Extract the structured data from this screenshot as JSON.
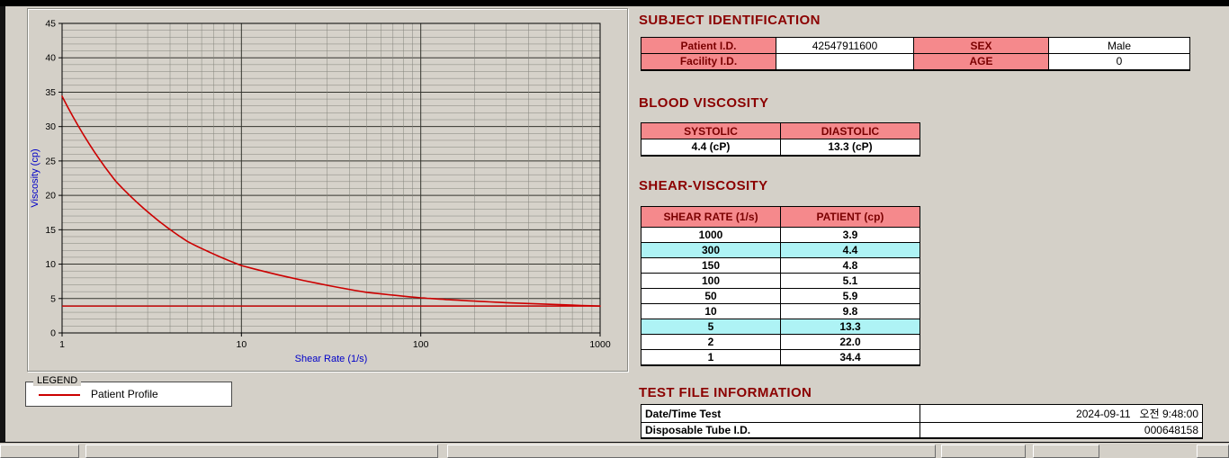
{
  "colors": {
    "header_bg": "#f5898c",
    "highlight_bg": "#aef3f5",
    "heading_text": "#8b0000",
    "accent_red": "#cc0000"
  },
  "chart_data": {
    "type": "line",
    "title": "",
    "xlabel": "Shear Rate (1/s)",
    "ylabel": "Viscosity (cp)",
    "x_scale": "log",
    "xlim": [
      1,
      1000
    ],
    "ylim": [
      0,
      45
    ],
    "y_ticks": [
      0,
      5,
      10,
      15,
      20,
      25,
      30,
      35,
      40,
      45
    ],
    "x_ticks": [
      1,
      10,
      100,
      1000
    ],
    "grid": true,
    "legend_position": "below-left",
    "series": [
      {
        "name": "Patient Profile",
        "color": "#cc0000",
        "x": [
          1,
          2,
          5,
          10,
          50,
          100,
          150,
          300,
          1000
        ],
        "y": [
          34.4,
          22.0,
          13.3,
          9.8,
          5.9,
          5.1,
          4.8,
          4.4,
          3.9
        ]
      }
    ],
    "reference_line": {
      "y": 3.9,
      "color": "#cc0000"
    }
  },
  "legend": {
    "title": "LEGEND",
    "series_label": "Patient Profile",
    "line_color": "#cc0000"
  },
  "subject": {
    "title": "SUBJECT IDENTIFICATION",
    "patient_id_label": "Patient I.D.",
    "patient_id_value": "42547911600",
    "sex_label": "SEX",
    "sex_value": "Male",
    "facility_id_label": "Facility I.D.",
    "facility_id_value": "",
    "age_label": "AGE",
    "age_value": "0"
  },
  "blood": {
    "title": "BLOOD VISCOSITY",
    "systolic_label": "SYSTOLIC",
    "diastolic_label": "DIASTOLIC",
    "systolic_value": "4.4 (cP)",
    "diastolic_value": "13.3 (cP)"
  },
  "shear": {
    "title": "SHEAR-VISCOSITY",
    "rate_header": "SHEAR RATE (1/s)",
    "patient_header": "PATIENT (cp)",
    "rows": [
      {
        "rate": "1000",
        "value": "3.9",
        "highlight": false
      },
      {
        "rate": "300",
        "value": "4.4",
        "highlight": true
      },
      {
        "rate": "150",
        "value": "4.8",
        "highlight": false
      },
      {
        "rate": "100",
        "value": "5.1",
        "highlight": false
      },
      {
        "rate": "50",
        "value": "5.9",
        "highlight": false
      },
      {
        "rate": "10",
        "value": "9.8",
        "highlight": false
      },
      {
        "rate": "5",
        "value": "13.3",
        "highlight": true
      },
      {
        "rate": "2",
        "value": "22.0",
        "highlight": false
      },
      {
        "rate": "1",
        "value": "34.4",
        "highlight": false
      }
    ]
  },
  "test_info": {
    "title": "TEST FILE INFORMATION",
    "date_label": "Date/Time Test",
    "date_value": "2024-09-11   오전 9:48:00",
    "tube_label": "Disposable Tube I.D.",
    "tube_value": "000648158"
  }
}
